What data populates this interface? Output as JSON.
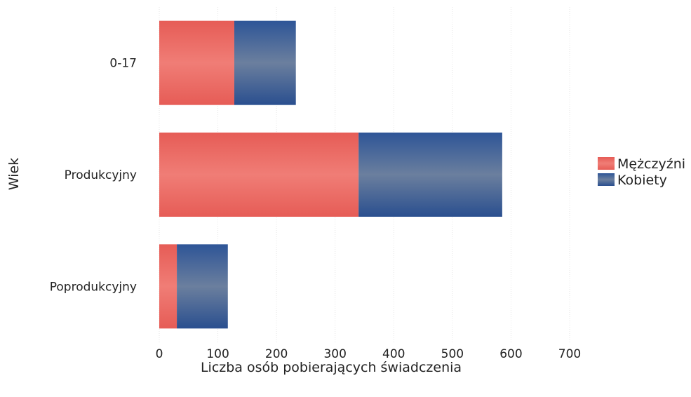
{
  "chart_data": {
    "type": "bar",
    "orientation": "horizontal",
    "stacked": true,
    "title": "",
    "xlabel": "Liczba osób pobierających świadczenia",
    "ylabel": "Wiek",
    "categories": [
      "0-17",
      "Produkcyjny",
      "Poprodukcyjny"
    ],
    "series": [
      {
        "name": "Mężczyźni",
        "color": "#e8655f",
        "values": [
          128,
          340,
          30
        ]
      },
      {
        "name": "Kobiety",
        "color": "#2f5597",
        "values": [
          105,
          245,
          87
        ]
      }
    ],
    "xlim": [
      0,
      700
    ],
    "xticks": [
      0,
      100,
      200,
      300,
      400,
      500,
      600,
      700
    ],
    "grid": true,
    "legend_position": "right"
  }
}
